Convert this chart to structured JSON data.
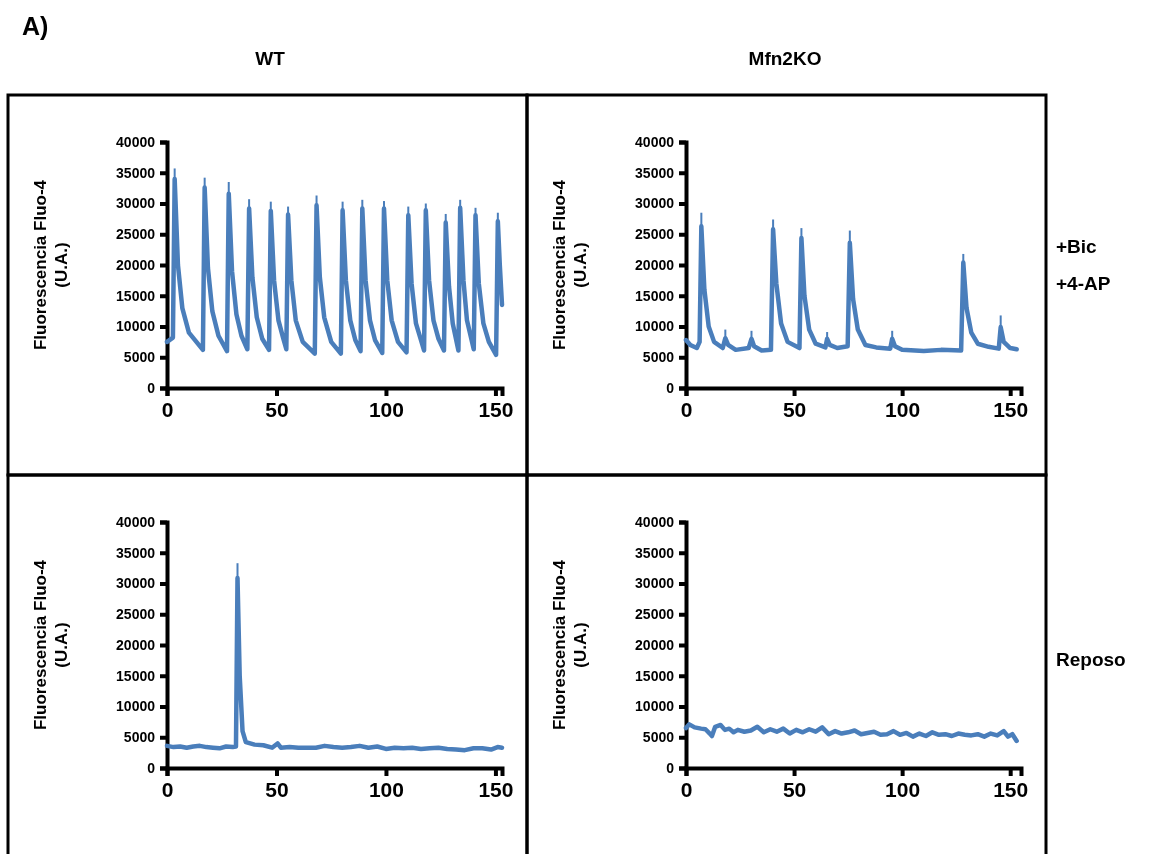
{
  "chart_data": [
    {
      "type": "line",
      "title": "WT",
      "ylabel": "Fluorescencia Fluo-4\n(U.A.)",
      "annotations": [
        "A)"
      ],
      "xlim": [
        0,
        153
      ],
      "ylim": [
        0,
        40000
      ],
      "xticks": [
        0,
        50,
        100,
        150
      ],
      "yticks": [
        0,
        5000,
        10000,
        15000,
        20000,
        25000,
        30000,
        35000,
        40000
      ],
      "line_style": "solid",
      "series": [
        {
          "color": "#4a7ebb",
          "x": [
            0,
            2.7,
            3.5,
            5,
            7,
            10,
            16.4,
            17.2,
            18.7,
            20.7,
            23.5,
            27.4,
            28.2,
            29.7,
            31.7,
            34,
            36.7,
            37.5,
            39,
            41,
            43.5,
            46.6,
            47.4,
            48.9,
            50.9,
            53,
            54.5,
            55.3,
            56.8,
            58.8,
            62,
            67.5,
            68.3,
            69.8,
            71.8,
            75,
            79.4,
            80.2,
            81.7,
            83.7,
            86,
            88.4,
            89.2,
            90.7,
            92.7,
            95,
            98.3,
            99.1,
            100.6,
            102.6,
            105.5,
            109.4,
            110.2,
            111.7,
            113.7,
            116,
            117.4,
            118.2,
            119.7,
            121.7,
            124,
            126.5,
            127.3,
            128.8,
            130.5,
            133.1,
            133.9,
            135.4,
            137,
            140.1,
            140.9,
            142.4,
            144.5,
            147,
            150.3,
            151.1,
            152,
            153
          ],
          "values": [
            7500,
            8200,
            34000,
            20000,
            13000,
            9000,
            6200,
            32600,
            19500,
            12500,
            8500,
            6000,
            31600,
            19000,
            12000,
            8500,
            6300,
            29200,
            18000,
            11500,
            8000,
            6200,
            28800,
            17500,
            11000,
            8200,
            6300,
            28200,
            17500,
            11000,
            7500,
            5600,
            29700,
            18000,
            11500,
            7500,
            5600,
            28900,
            17500,
            11000,
            7800,
            6000,
            29200,
            17500,
            11000,
            7800,
            5700,
            29200,
            17500,
            11000,
            7500,
            5800,
            28100,
            17000,
            10500,
            7800,
            6100,
            28900,
            17500,
            11000,
            8000,
            6100,
            26900,
            16500,
            10500,
            6100,
            29300,
            17500,
            11000,
            6300,
            28100,
            17000,
            10500,
            7500,
            5400,
            27100,
            20000,
            13500
          ],
          "errors": [
            null,
            null,
            [
              34000,
              35700
            ],
            null,
            null,
            null,
            null,
            [
              32600,
              34200
            ],
            null,
            null,
            null,
            null,
            [
              31600,
              33500
            ],
            null,
            null,
            null,
            null,
            [
              29200,
              30700
            ],
            null,
            null,
            null,
            null,
            [
              28800,
              30300
            ],
            null,
            null,
            null,
            null,
            [
              28200,
              29500
            ],
            null,
            null,
            null,
            null,
            [
              29700,
              31300
            ],
            null,
            null,
            null,
            null,
            [
              28900,
              30300
            ],
            null,
            null,
            null,
            null,
            [
              29200,
              30600
            ],
            null,
            null,
            null,
            null,
            [
              29200,
              30400
            ],
            null,
            null,
            null,
            null,
            [
              28100,
              29500
            ],
            null,
            null,
            null,
            null,
            [
              28900,
              30000
            ],
            null,
            null,
            null,
            null,
            [
              26900,
              28300
            ],
            null,
            null,
            null,
            [
              29300,
              30600
            ],
            null,
            null,
            null,
            [
              28100,
              29300
            ],
            null,
            null,
            null,
            null,
            [
              27100,
              28500
            ],
            null,
            null
          ]
        }
      ]
    },
    {
      "type": "line",
      "title": "Mfn2KO",
      "ylabel": "Fluorescencia Fluo-4\n(U.A.)",
      "annotations": [
        "+Bic\n+4-AP"
      ],
      "xlim": [
        0,
        155
      ],
      "ylim": [
        0,
        40000
      ],
      "xticks": [
        0,
        50,
        100,
        150
      ],
      "yticks": [
        0,
        5000,
        10000,
        15000,
        20000,
        25000,
        30000,
        35000,
        40000
      ],
      "line_style": "solid",
      "series": [
        {
          "color": "#4a7ebb",
          "x": [
            0,
            2,
            5,
            6.3,
            7.1,
            8.5,
            10.5,
            13,
            17,
            18.2,
            19.5,
            23,
            29,
            30.3,
            31.5,
            35,
            39.3,
            40.3,
            41.8,
            44,
            47,
            52.5,
            53.4,
            54.8,
            57,
            60,
            64.5,
            65.3,
            66.5,
            70,
            74.8,
            75.8,
            77.3,
            79.5,
            83,
            88,
            94.5,
            95.4,
            96.7,
            100,
            110,
            118,
            127.3,
            128.3,
            129.8,
            132,
            135,
            140,
            144.7,
            145.6,
            147,
            150,
            153
          ],
          "values": [
            7800,
            7000,
            6500,
            7500,
            26300,
            16000,
            10000,
            7500,
            6500,
            8100,
            7000,
            6200,
            6500,
            8000,
            6800,
            6100,
            6200,
            25800,
            17000,
            10500,
            7500,
            6500,
            24400,
            15000,
            9500,
            7200,
            6600,
            8000,
            7000,
            6500,
            6800,
            23600,
            14500,
            9500,
            7000,
            6600,
            6400,
            8000,
            6800,
            6200,
            6000,
            6200,
            6100,
            20400,
            13000,
            9000,
            7200,
            6700,
            6400,
            9900,
            7500,
            6500,
            6300
          ],
          "errors": [
            null,
            null,
            null,
            null,
            [
              26300,
              28500
            ],
            null,
            null,
            null,
            null,
            [
              8100,
              9500
            ],
            null,
            null,
            null,
            [
              8000,
              9300
            ],
            null,
            null,
            null,
            [
              25800,
              27400
            ],
            null,
            null,
            null,
            null,
            [
              24400,
              26000
            ],
            null,
            null,
            null,
            null,
            [
              8000,
              9100
            ],
            null,
            null,
            null,
            [
              23600,
              25600
            ],
            null,
            null,
            null,
            null,
            null,
            [
              8000,
              9300
            ],
            null,
            null,
            null,
            null,
            null,
            [
              20400,
              21800
            ],
            null,
            null,
            null,
            null,
            null,
            [
              9900,
              11800
            ],
            null,
            null,
            null
          ]
        }
      ]
    },
    {
      "type": "line",
      "ylabel": "Fluorescencia Fluo-4\n(U.A.)",
      "xlim": [
        0,
        153
      ],
      "ylim": [
        0,
        40000
      ],
      "xticks": [
        0,
        50,
        100,
        150
      ],
      "yticks": [
        0,
        5000,
        10000,
        15000,
        20000,
        25000,
        30000,
        35000,
        40000
      ],
      "line_style": "solid",
      "series": [
        {
          "color": "#4a7ebb",
          "x": [
            0,
            3,
            6,
            9,
            12,
            15,
            18,
            21,
            24,
            27,
            30,
            31.5,
            32.2,
            33.2,
            34.5,
            36,
            40,
            44,
            48,
            50.5,
            52,
            56,
            60,
            64,
            68,
            72,
            76,
            80,
            84,
            88,
            92,
            96,
            100,
            104,
            108,
            112,
            116,
            120,
            124,
            128,
            132,
            136,
            140,
            144,
            148,
            151,
            153
          ],
          "values": [
            3600,
            3400,
            3500,
            3300,
            3500,
            3600,
            3400,
            3300,
            3200,
            3500,
            3400,
            3500,
            30900,
            15000,
            6000,
            4200,
            3800,
            3700,
            3300,
            4000,
            3300,
            3400,
            3300,
            3300,
            3300,
            3600,
            3400,
            3300,
            3400,
            3600,
            3300,
            3500,
            3100,
            3300,
            3200,
            3300,
            3100,
            3200,
            3300,
            3100,
            3000,
            2900,
            3200,
            3200,
            3000,
            3400,
            3300
          ],
          "errors": [
            null,
            null,
            null,
            null,
            null,
            null,
            null,
            null,
            null,
            null,
            null,
            null,
            [
              30900,
              33300
            ],
            null,
            null,
            null,
            null,
            null,
            null,
            null,
            null,
            null,
            null,
            null,
            null,
            null,
            null,
            null,
            null,
            null,
            null,
            null,
            null,
            null,
            null,
            null,
            null,
            null,
            null,
            null,
            null,
            null,
            null,
            null,
            null,
            null,
            null
          ]
        }
      ]
    },
    {
      "type": "line",
      "ylabel": "Fluorescencia Fluo-4\n(U.A.)",
      "annotations": [
        "Reposo"
      ],
      "xlim": [
        0,
        155
      ],
      "ylim": [
        0,
        40000
      ],
      "xticks": [
        0,
        50,
        100,
        150
      ],
      "yticks": [
        0,
        5000,
        10000,
        15000,
        20000,
        25000,
        30000,
        35000,
        40000
      ],
      "line_style": "solid",
      "series": [
        {
          "color": "#4a7ebb",
          "x": [
            0,
            1.5,
            4,
            7,
            9,
            11,
            12,
            13.5,
            16,
            18,
            20,
            22,
            24,
            27,
            30,
            33,
            36,
            39,
            42,
            45,
            48,
            51,
            54,
            57,
            60,
            63,
            66,
            69,
            72,
            75,
            78,
            81,
            84,
            87,
            90,
            93,
            96,
            99,
            102,
            105,
            108,
            111,
            114,
            117,
            120,
            123,
            126,
            129,
            132,
            135,
            138,
            141,
            144,
            147,
            149,
            151,
            153
          ],
          "values": [
            6500,
            7100,
            6600,
            6400,
            6300,
            5600,
            5200,
            6700,
            7000,
            6200,
            6400,
            5800,
            6200,
            5900,
            6100,
            6700,
            5800,
            6300,
            5900,
            6400,
            5600,
            6200,
            5800,
            6300,
            5900,
            6600,
            5500,
            6000,
            5600,
            5800,
            6100,
            5500,
            5700,
            5900,
            5400,
            5500,
            6000,
            5400,
            5700,
            5100,
            5600,
            5200,
            5800,
            5400,
            5500,
            5200,
            5600,
            5400,
            5300,
            5500,
            5100,
            5600,
            5300,
            6000,
            5100,
            5500,
            4400
          ]
        }
      ]
    }
  ]
}
